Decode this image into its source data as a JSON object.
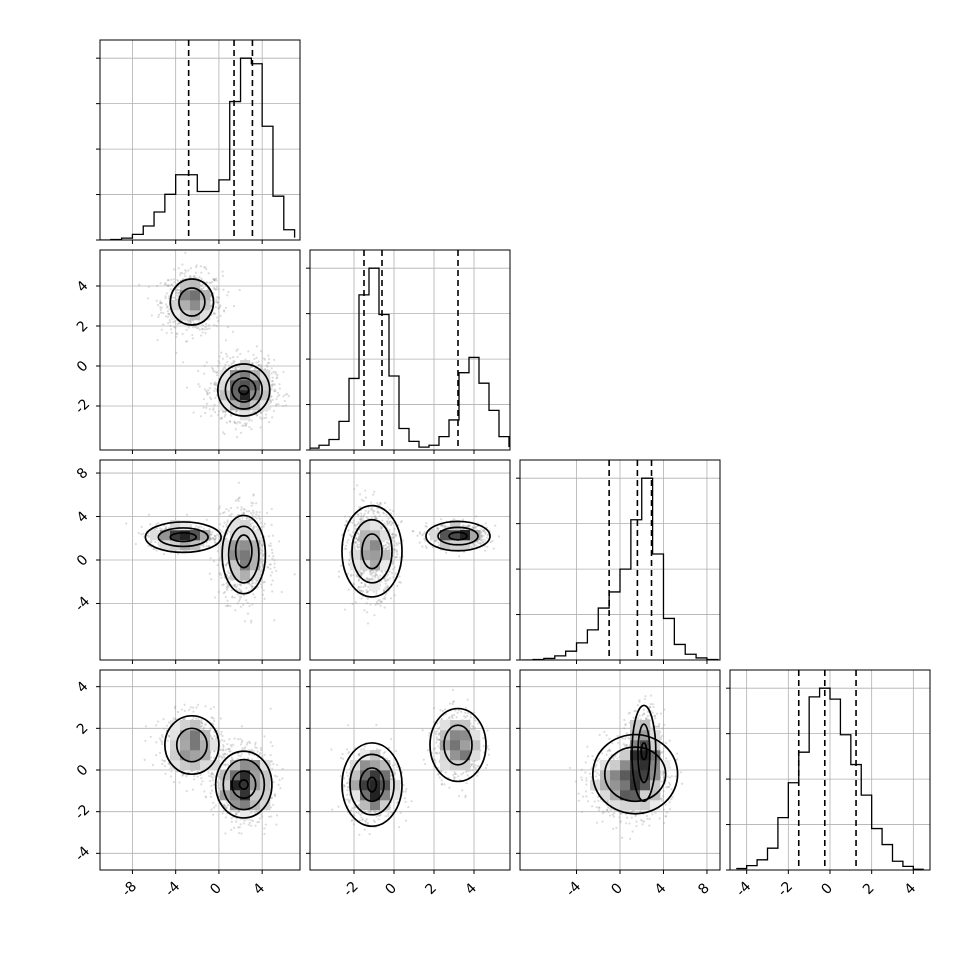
{
  "chart_data": {
    "type": "corner",
    "dimensions": 4,
    "axis_ranges": [
      [
        -11,
        7.5
      ],
      [
        -4.2,
        5.8
      ],
      [
        -9.2,
        9.2
      ],
      [
        -4.8,
        4.8
      ]
    ],
    "tick_labels": [
      [
        -8,
        -4,
        0,
        4
      ],
      [
        -2,
        0,
        2,
        4
      ],
      [
        -4,
        0,
        4,
        8
      ],
      [
        -4,
        -2,
        0,
        2,
        4
      ]
    ],
    "grid": true,
    "histograms": [
      {
        "dim": 0,
        "bin_edges": [
          -11,
          -10,
          -9,
          -8,
          -7,
          -6,
          -5,
          -4,
          -3,
          -2,
          -1,
          0,
          1,
          2,
          3,
          4,
          5,
          6,
          7
        ],
        "counts": [
          0,
          1,
          4,
          12,
          30,
          60,
          98,
          140,
          140,
          104,
          104,
          129,
          297,
          390,
          378,
          244,
          94,
          22,
          5
        ],
        "quantiles": [
          -2.8,
          1.4,
          3.1
        ]
      },
      {
        "dim": 1,
        "bin_edges": [
          -4.25,
          -3.75,
          -3.25,
          -2.75,
          -2.25,
          -1.75,
          -1.25,
          -0.75,
          -0.25,
          0.25,
          0.75,
          1.25,
          1.75,
          2.25,
          2.75,
          3.25,
          3.75,
          4.25,
          4.75,
          5.25,
          5.75
        ],
        "counts": [
          4,
          10,
          22,
          60,
          150,
          325,
          381,
          284,
          155,
          45,
          18,
          6,
          10,
          28,
          63,
          162,
          194,
          140,
          83,
          28,
          6
        ],
        "quantiles": [
          -1.5,
          -0.6,
          3.2
        ]
      },
      {
        "dim": 2,
        "bin_edges": [
          -9,
          -8,
          -7,
          -6,
          -5,
          -4,
          -3,
          -2,
          -1,
          0,
          1,
          2,
          3,
          4,
          5,
          6,
          7,
          8,
          9
        ],
        "counts": [
          0,
          1,
          3,
          8,
          17,
          33,
          58,
          100,
          131,
          175,
          270,
          350,
          204,
          80,
          30,
          11,
          4,
          1,
          0
        ],
        "quantiles": [
          -1.0,
          1.6,
          2.9
        ]
      },
      {
        "dim": 3,
        "bin_edges": [
          -4.5,
          -4.0,
          -3.5,
          -3.0,
          -2.5,
          -2.0,
          -1.5,
          -1.0,
          -0.5,
          0.0,
          0.5,
          1.0,
          1.5,
          2.0,
          2.5,
          3.0,
          3.5,
          4.0,
          4.5
        ],
        "counts": [
          2,
          6,
          14,
          30,
          72,
          120,
          162,
          238,
          250,
          235,
          186,
          145,
          103,
          57,
          35,
          12,
          5,
          1
        ],
        "quantiles": [
          -1.5,
          -0.25,
          1.25
        ]
      }
    ],
    "panels_2d": [
      {
        "x_dim": 0,
        "y_dim": 1,
        "clusters": [
          {
            "cx": -2.5,
            "cy": 3.2,
            "sx": 1.4,
            "sy": 0.75,
            "n": 650
          },
          {
            "cx": 2.3,
            "cy": -1.2,
            "sx": 1.4,
            "sy": 0.75,
            "n": 1000
          }
        ],
        "contours": [
          {
            "cx": -2.5,
            "cy": 3.2,
            "rx": 2.0,
            "ry": 1.15
          },
          {
            "cx": -2.5,
            "cy": 3.2,
            "rx": 1.2,
            "ry": 0.7
          },
          {
            "cx": 2.3,
            "cy": -1.2,
            "rx": 2.4,
            "ry": 1.3
          },
          {
            "cx": 2.3,
            "cy": -1.2,
            "rx": 1.7,
            "ry": 0.95
          },
          {
            "cx": 2.3,
            "cy": -1.2,
            "rx": 1.1,
            "ry": 0.6
          },
          {
            "cx": 2.3,
            "cy": -1.2,
            "rx": 0.45,
            "ry": 0.22
          }
        ]
      },
      {
        "x_dim": 0,
        "y_dim": 2,
        "clusters": [
          {
            "cx": -3.5,
            "cy": 2.2,
            "sx": 1.5,
            "sy": 0.55,
            "n": 650
          },
          {
            "cx": 2.3,
            "cy": 0.5,
            "sx": 1.1,
            "sy": 2.0,
            "n": 1000
          }
        ],
        "contours": [
          {
            "cx": -3.3,
            "cy": 2.1,
            "rx": 3.5,
            "ry": 1.4
          },
          {
            "cx": -3.3,
            "cy": 2.1,
            "rx": 2.3,
            "ry": 0.85
          },
          {
            "cx": -3.3,
            "cy": 2.1,
            "rx": 1.2,
            "ry": 0.4
          },
          {
            "cx": 2.3,
            "cy": 0.5,
            "rx": 2.0,
            "ry": 3.6
          },
          {
            "cx": 2.3,
            "cy": 0.5,
            "rx": 1.4,
            "ry": 2.6
          },
          {
            "cx": 2.3,
            "cy": 0.8,
            "rx": 0.75,
            "ry": 1.5
          }
        ]
      },
      {
        "x_dim": 1,
        "y_dim": 2,
        "clusters": [
          {
            "cx": -1.1,
            "cy": 0.8,
            "sx": 0.6,
            "sy": 2.0,
            "n": 1000
          },
          {
            "cx": 3.2,
            "cy": 2.2,
            "sx": 0.75,
            "sy": 0.55,
            "n": 650
          }
        ],
        "contours": [
          {
            "cx": -1.1,
            "cy": 0.8,
            "rx": 1.5,
            "ry": 4.2
          },
          {
            "cx": -1.1,
            "cy": 0.8,
            "rx": 1.0,
            "ry": 2.9
          },
          {
            "cx": -1.1,
            "cy": 0.8,
            "rx": 0.5,
            "ry": 1.6
          },
          {
            "cx": 3.2,
            "cy": 2.2,
            "rx": 1.6,
            "ry": 1.35
          },
          {
            "cx": 3.2,
            "cy": 2.2,
            "rx": 1.0,
            "ry": 0.8
          },
          {
            "cx": 3.2,
            "cy": 2.2,
            "rx": 0.45,
            "ry": 0.35
          }
        ]
      },
      {
        "x_dim": 0,
        "y_dim": 3,
        "clusters": [
          {
            "cx": -2.5,
            "cy": 1.2,
            "sx": 1.4,
            "sy": 0.75,
            "n": 650
          },
          {
            "cx": 2.3,
            "cy": -0.7,
            "sx": 1.3,
            "sy": 0.85,
            "n": 1000
          }
        ],
        "contours": [
          {
            "cx": -2.5,
            "cy": 1.2,
            "rx": 2.5,
            "ry": 1.4
          },
          {
            "cx": -2.5,
            "cy": 1.2,
            "rx": 1.4,
            "ry": 0.8
          },
          {
            "cx": 2.3,
            "cy": -0.7,
            "rx": 2.6,
            "ry": 1.6
          },
          {
            "cx": 2.3,
            "cy": -0.7,
            "rx": 1.9,
            "ry": 1.2
          },
          {
            "cx": 2.3,
            "cy": -0.7,
            "rx": 1.1,
            "ry": 0.65
          },
          {
            "cx": 2.3,
            "cy": -0.7,
            "rx": 0.4,
            "ry": 0.22
          }
        ]
      },
      {
        "x_dim": 1,
        "y_dim": 3,
        "clusters": [
          {
            "cx": -1.1,
            "cy": -0.7,
            "sx": 0.6,
            "sy": 0.8,
            "n": 1000
          },
          {
            "cx": 3.2,
            "cy": 1.2,
            "sx": 0.6,
            "sy": 0.8,
            "n": 650
          }
        ],
        "contours": [
          {
            "cx": -1.1,
            "cy": -0.7,
            "rx": 1.5,
            "ry": 2.0
          },
          {
            "cx": -1.1,
            "cy": -0.7,
            "rx": 1.1,
            "ry": 1.45
          },
          {
            "cx": -1.1,
            "cy": -0.7,
            "rx": 0.6,
            "ry": 0.8
          },
          {
            "cx": -1.1,
            "cy": -0.7,
            "rx": 0.22,
            "ry": 0.35
          },
          {
            "cx": 3.2,
            "cy": 1.2,
            "rx": 1.4,
            "ry": 1.75
          },
          {
            "cx": 3.2,
            "cy": 1.2,
            "rx": 0.7,
            "ry": 0.95
          }
        ]
      },
      {
        "x_dim": 2,
        "y_dim": 3,
        "clusters": [
          {
            "cx": 2.2,
            "cy": 0.8,
            "sx": 0.8,
            "sy": 1.0,
            "n": 650
          },
          {
            "cx": 0.8,
            "cy": -0.6,
            "sx": 1.8,
            "sy": 0.8,
            "n": 1000
          }
        ],
        "contours": [
          {
            "cx": 1.4,
            "cy": -0.2,
            "rx": 3.9,
            "ry": 1.9
          },
          {
            "cx": 1.4,
            "cy": -0.2,
            "rx": 2.8,
            "ry": 1.3
          },
          {
            "cx": 2.2,
            "cy": 0.8,
            "rx": 1.1,
            "ry": 2.3
          },
          {
            "cx": 2.2,
            "cy": 0.8,
            "rx": 0.55,
            "ry": 1.4
          },
          {
            "cx": 2.2,
            "cy": 0.9,
            "rx": 0.25,
            "ry": 0.4
          }
        ]
      }
    ]
  }
}
